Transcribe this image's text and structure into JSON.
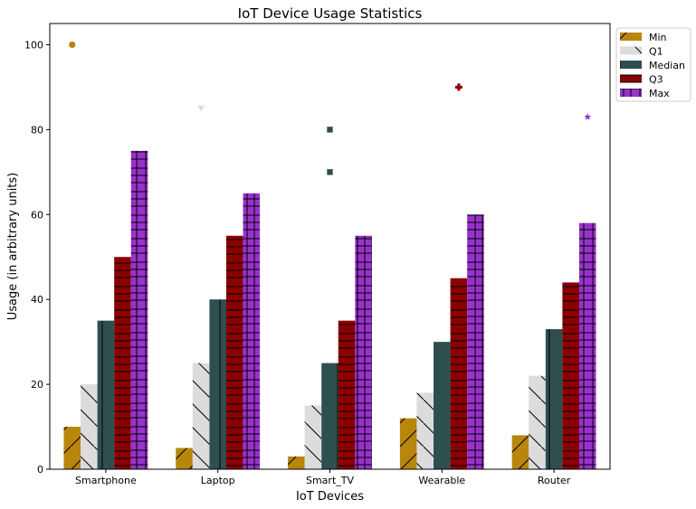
{
  "chart_data": {
    "type": "bar",
    "title": "IoT Device Usage Statistics",
    "xlabel": "IoT Devices",
    "ylabel": "Usage (in arbitrary units)",
    "categories": [
      "Smartphone",
      "Laptop",
      "Smart_TV",
      "Wearable",
      "Router"
    ],
    "ylim": [
      0,
      105
    ],
    "yticks": [
      0,
      20,
      40,
      60,
      80,
      100
    ],
    "grid": false,
    "legend_position": "outside-top-right",
    "series": [
      {
        "name": "Min",
        "values": [
          10,
          5,
          3,
          12,
          8
        ],
        "color": "#b8860b",
        "hatch": "diagonal-up"
      },
      {
        "name": "Q1",
        "values": [
          20,
          25,
          15,
          18,
          22
        ],
        "color": "#dcdcdc",
        "hatch": "diagonal-down"
      },
      {
        "name": "Median",
        "values": [
          35,
          40,
          25,
          30,
          33
        ],
        "color": "#2f4f4f",
        "hatch": "vertical"
      },
      {
        "name": "Q3",
        "values": [
          50,
          55,
          35,
          45,
          44
        ],
        "color": "#8b0000",
        "hatch": "horizontal"
      },
      {
        "name": "Max",
        "values": [
          75,
          65,
          55,
          60,
          58
        ],
        "color": "#9932cc",
        "hatch": "grid"
      }
    ],
    "outliers": [
      {
        "category": "Smartphone",
        "value": 100,
        "marker": "circle",
        "color": "#b8860b"
      },
      {
        "category": "Laptop",
        "value": 85,
        "marker": "triangle-down",
        "color": "#dcdcdc"
      },
      {
        "category": "Smart_TV",
        "value": 80,
        "marker": "square",
        "color": "#2f4f4f"
      },
      {
        "category": "Smart_TV",
        "value": 70,
        "marker": "square",
        "color": "#2f4f4f"
      },
      {
        "category": "Wearable",
        "value": 90,
        "marker": "plus",
        "color": "#8b0000"
      },
      {
        "category": "Router",
        "value": 83,
        "marker": "star",
        "color": "#9932cc"
      }
    ]
  }
}
